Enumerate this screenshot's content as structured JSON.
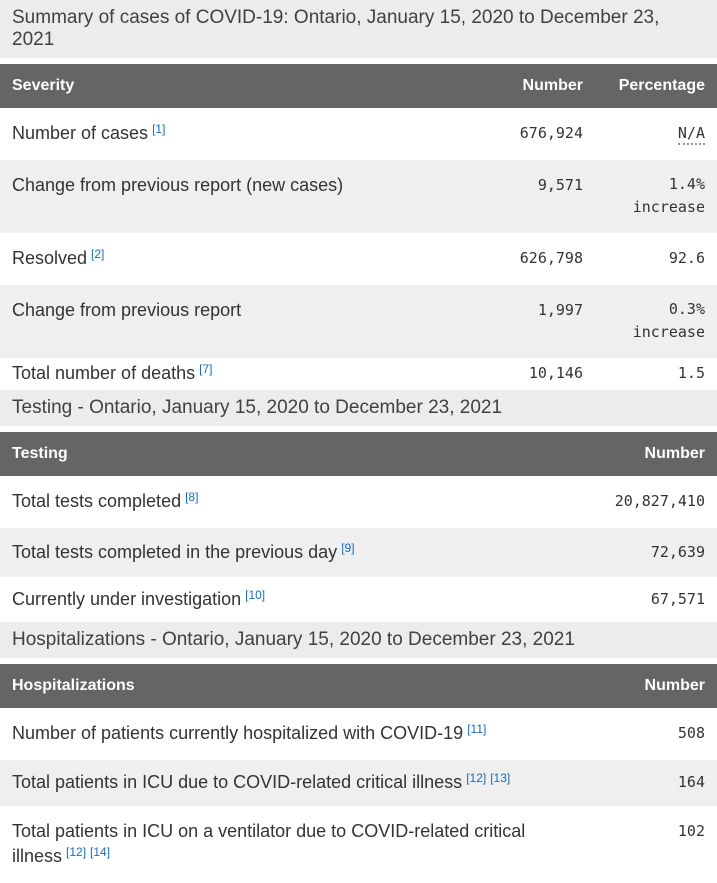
{
  "colors": {
    "table_header_bg": "#656565",
    "table_header_text": "#ffffff",
    "stripe_bg": "#efefef",
    "section_title_bg": "#ececec",
    "body_text": "#333333",
    "footnote_link": "#1a6db8"
  },
  "summary": {
    "title": "Summary of cases of COVID-19: Ontario, January 15, 2020 to December 23, 2021",
    "headers": [
      "Severity",
      "Number",
      "Percentage"
    ],
    "rows": [
      {
        "label": "Number of cases",
        "fn": [
          "[1]"
        ],
        "number": "676,924",
        "pct": "N/A"
      },
      {
        "label": "Change from previous report (new cases)",
        "number": "9,571",
        "pct": "1.4%",
        "pct2": "increase"
      },
      {
        "label": "Resolved",
        "fn": [
          "[2]"
        ],
        "number": "626,798",
        "pct": "92.6"
      },
      {
        "label": "Change from previous report",
        "number": "1,997",
        "pct": "0.3%",
        "pct2": "increase"
      },
      {
        "label": "Total number of deaths",
        "fn": [
          "[7]"
        ],
        "number": "10,146",
        "pct": "1.5"
      }
    ]
  },
  "testing": {
    "title": "Testing - Ontario, January 15, 2020 to December 23, 2021",
    "headers": [
      "Testing",
      "Number"
    ],
    "rows": [
      {
        "label": "Total tests completed",
        "fn": [
          "[8]"
        ],
        "number": "20,827,410"
      },
      {
        "label": "Total tests completed in the previous day",
        "fn": [
          "[9]"
        ],
        "number": "72,639"
      },
      {
        "label": "Currently under investigation",
        "fn": [
          "[10]"
        ],
        "number": "67,571"
      }
    ]
  },
  "hospitalizations": {
    "title": "Hospitalizations - Ontario, January 15, 2020 to December 23, 2021",
    "headers": [
      "Hospitalizations",
      "Number"
    ],
    "rows": [
      {
        "label": "Number of patients currently hospitalized with COVID-19",
        "fn": [
          "[11]"
        ],
        "number": "508"
      },
      {
        "label": "Total patients in ICU due to COVID-related critical illness",
        "fn": [
          "[12]",
          "[13]"
        ],
        "number": "164"
      },
      {
        "label": "Total patients in ICU on a ventilator due to COVID-related critical illness",
        "fn": [
          "[12]",
          "[14]"
        ],
        "number": "102"
      }
    ]
  }
}
